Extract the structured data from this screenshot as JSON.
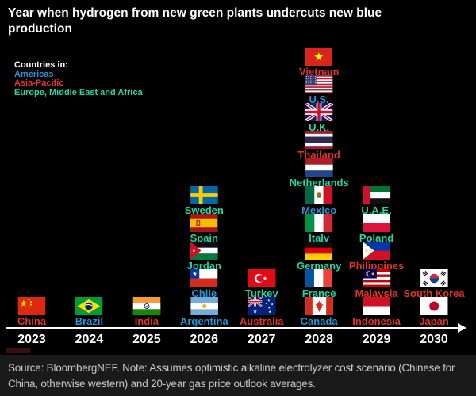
{
  "legend": {
    "heading": "Countries in:",
    "items": [
      {
        "label": "Americas",
        "color": "#2596d8"
      },
      {
        "label": "Asia-Pacific",
        "color": "#e0352a"
      },
      {
        "label": "Europe, Middle East and Africa",
        "color": "#1ed9a3"
      }
    ]
  },
  "chart_data": {
    "type": "scatter",
    "subtype": "flag-timeline",
    "title": "Year when hydrogen from new green plants undercuts new blue production",
    "xlabel": "",
    "ylabel": "",
    "grid": false,
    "legend_position": "top-left",
    "axis": {
      "line_color": "#ffffff",
      "arrow": "right"
    },
    "x": [
      "2023",
      "2024",
      "2025",
      "2026",
      "2027",
      "2028",
      "2029",
      "2030"
    ],
    "columns": [
      {
        "year": "2023",
        "countries": [
          {
            "name": "China",
            "region": "Asia-Pacific",
            "flag": "china"
          }
        ]
      },
      {
        "year": "2024",
        "countries": [
          {
            "name": "Brazil",
            "region": "Americas",
            "flag": "brazil"
          }
        ]
      },
      {
        "year": "2025",
        "countries": [
          {
            "name": "India",
            "region": "Asia-Pacific",
            "flag": "india"
          }
        ]
      },
      {
        "year": "2026",
        "countries": [
          {
            "name": "Sweden",
            "region": "Europe, Middle East and Africa",
            "flag": "sweden"
          },
          {
            "name": "Spain",
            "region": "Europe, Middle East and Africa",
            "flag": "spain"
          },
          {
            "name": "Jordan",
            "region": "Europe, Middle East and Africa",
            "flag": "jordan"
          },
          {
            "name": "Chile",
            "region": "Americas",
            "flag": "chile"
          },
          {
            "name": "Argentina",
            "region": "Americas",
            "flag": "argentina"
          }
        ]
      },
      {
        "year": "2027",
        "countries": [
          {
            "name": "Turkey",
            "region": "Europe, Middle East and Africa",
            "flag": "turkey"
          },
          {
            "name": "Australia",
            "region": "Asia-Pacific",
            "flag": "australia"
          }
        ]
      },
      {
        "year": "2028",
        "countries": [
          {
            "name": "Vietnam",
            "region": "Asia-Pacific",
            "flag": "vietnam"
          },
          {
            "name": "U.S.",
            "region": "Americas",
            "flag": "us"
          },
          {
            "name": "U.K.",
            "region": "Europe, Middle East and Africa",
            "flag": "uk"
          },
          {
            "name": "Thailand",
            "region": "Asia-Pacific",
            "flag": "thailand"
          },
          {
            "name": "Netherlands",
            "region": "Europe, Middle East and Africa",
            "flag": "netherlands"
          },
          {
            "name": "Mexico",
            "region": "Americas",
            "flag": "mexico"
          },
          {
            "name": "Italy",
            "region": "Europe, Middle East and Africa",
            "flag": "italy"
          },
          {
            "name": "Germany",
            "region": "Europe, Middle East and Africa",
            "flag": "germany"
          },
          {
            "name": "France",
            "region": "Europe, Middle East and Africa",
            "flag": "france"
          },
          {
            "name": "Canada",
            "region": "Americas",
            "flag": "canada"
          }
        ]
      },
      {
        "year": "2029",
        "countries": [
          {
            "name": "U.A.E.",
            "region": "Europe, Middle East and Africa",
            "flag": "uae"
          },
          {
            "name": "Poland",
            "region": "Europe, Middle East and Africa",
            "flag": "poland"
          },
          {
            "name": "Philippines",
            "region": "Asia-Pacific",
            "flag": "philippines"
          },
          {
            "name": "Malaysia",
            "region": "Asia-Pacific",
            "flag": "malaysia"
          },
          {
            "name": "Indonesia",
            "region": "Asia-Pacific",
            "flag": "indonesia"
          }
        ]
      },
      {
        "year": "2030",
        "countries": [
          {
            "name": "South Korea",
            "region": "Asia-Pacific",
            "flag": "southkorea"
          },
          {
            "name": "Japan",
            "region": "Asia-Pacific",
            "flag": "japan"
          }
        ]
      }
    ]
  },
  "footer": {
    "text": "Source: BloombergNEF. Note: Assumes optimistic alkaline electrolyzer cost scenario (Chinese for China, otherwise western) and 20-year gas price outlook averages."
  }
}
